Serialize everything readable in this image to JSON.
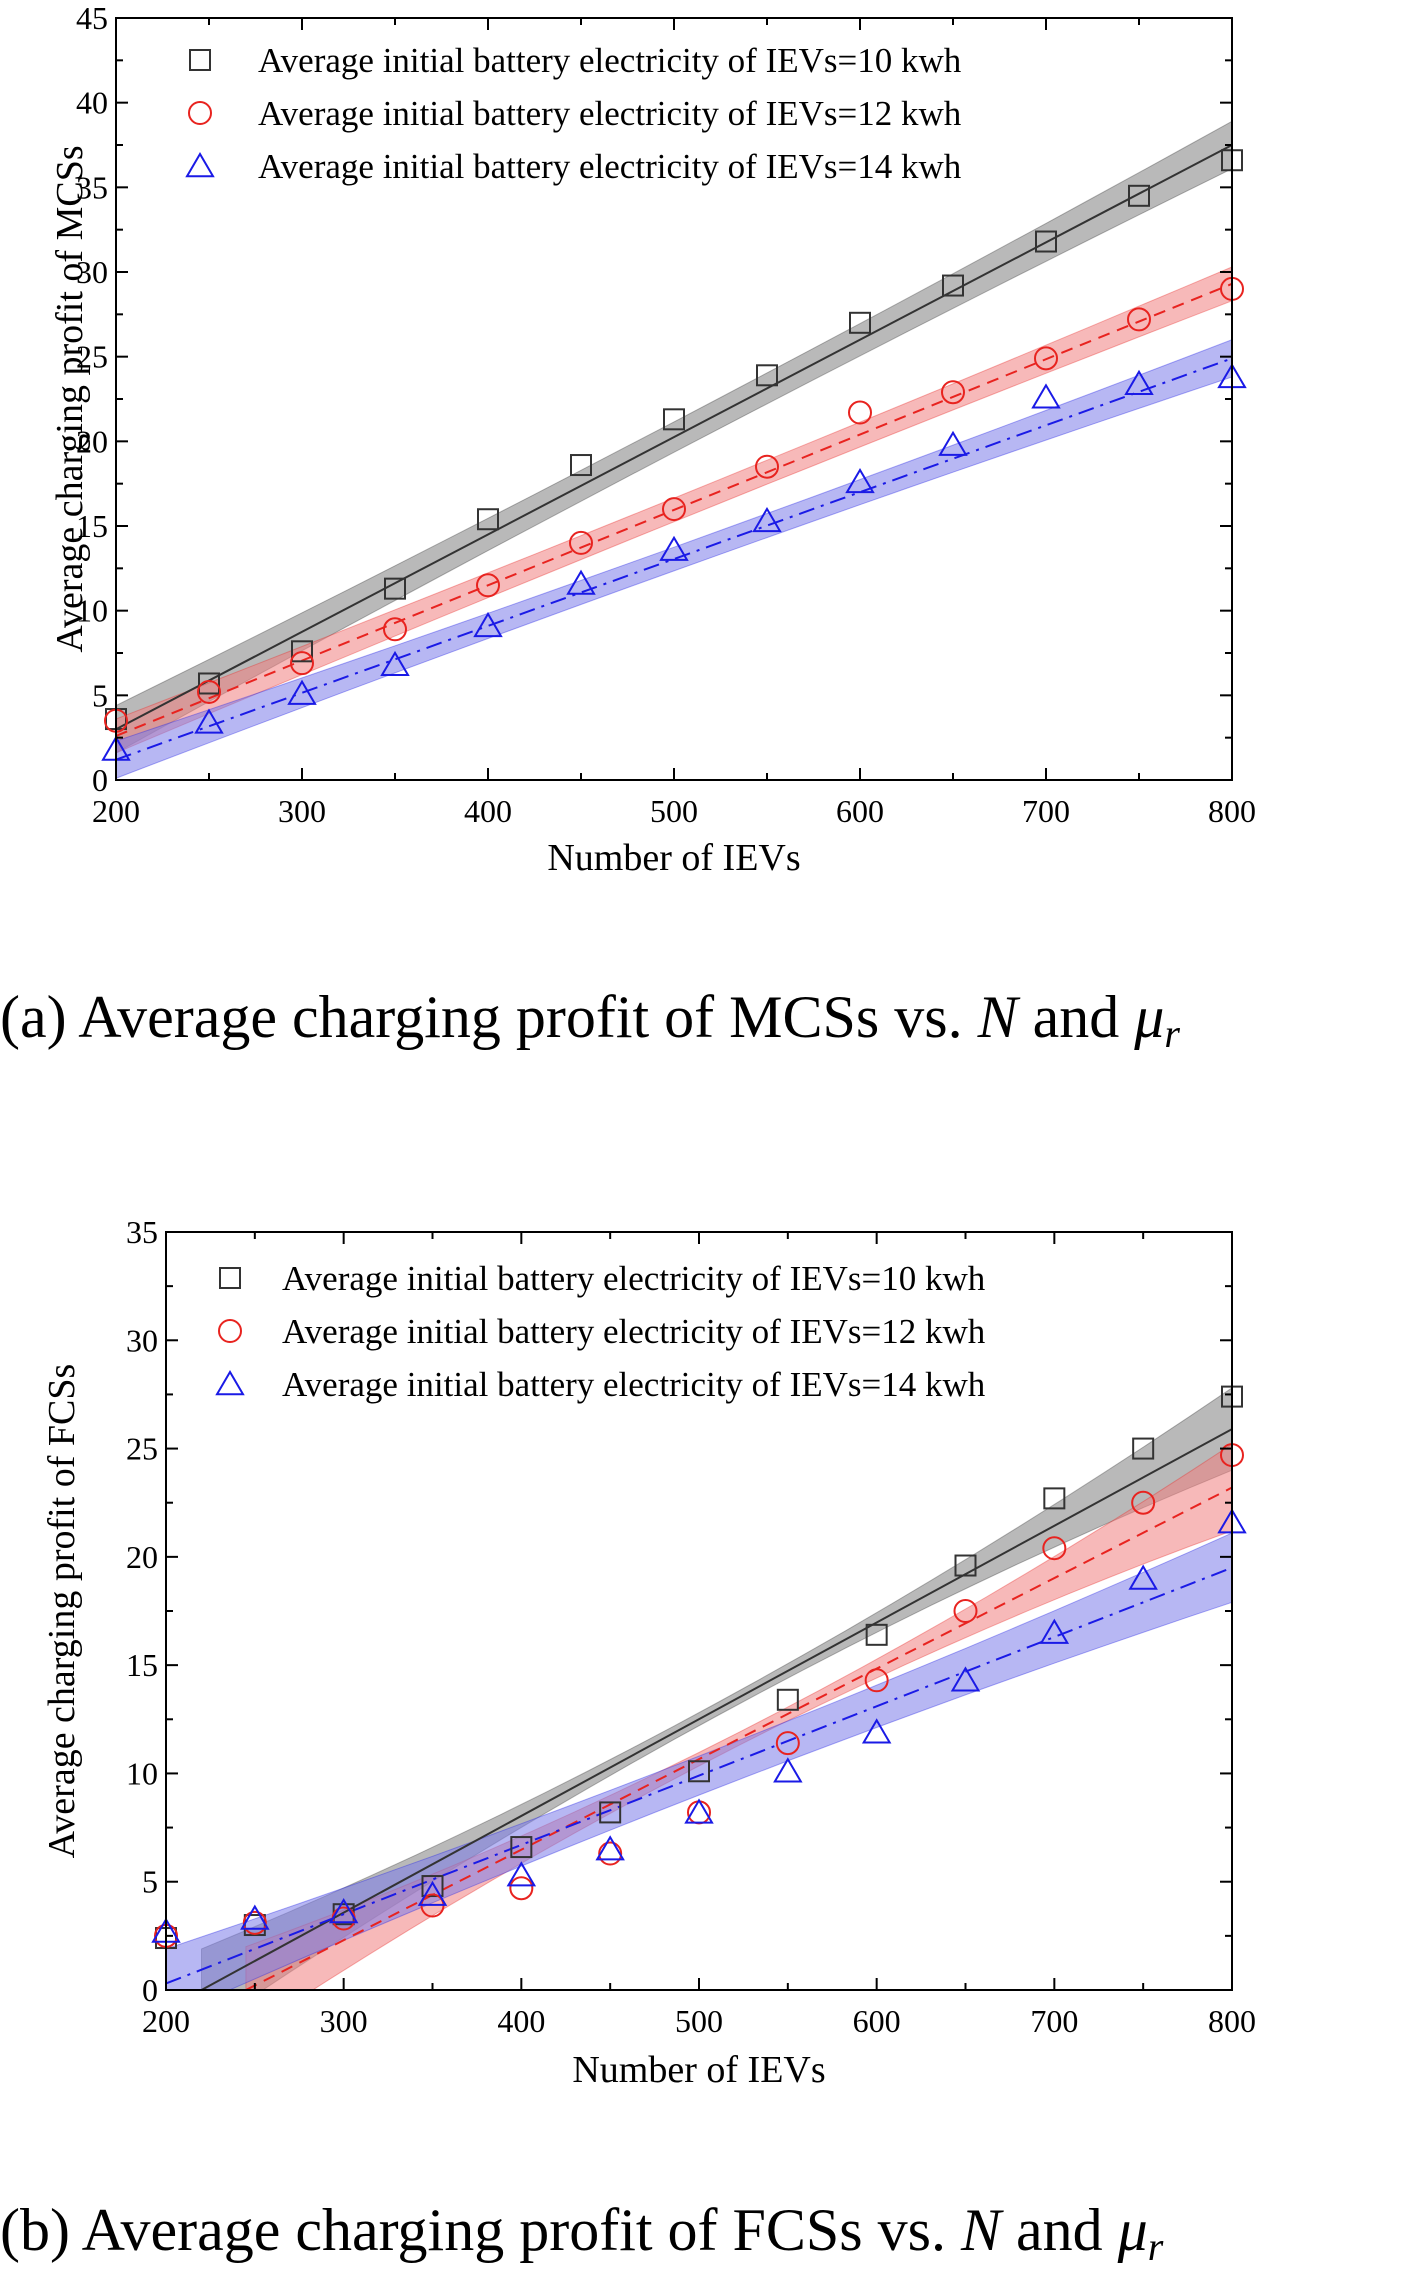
{
  "chart_data": [
    {
      "type": "scatter",
      "xlabel": "Number of IEVs",
      "ylabel": "Average charging profit of MCSs",
      "xlim": [
        200,
        800
      ],
      "ylim": [
        0,
        45
      ],
      "xticks": [
        200,
        300,
        400,
        500,
        600,
        700,
        800
      ],
      "yticks": [
        0,
        5,
        10,
        15,
        20,
        25,
        30,
        35,
        40,
        45
      ],
      "legend_position": "top-left",
      "caption": {
        "prefix": "(a)  Average charging profit of MCSs vs. ",
        "var_n": "N",
        "mid": " and ",
        "var_mu": "μ",
        "sub": "r"
      },
      "x": [
        200,
        250,
        300,
        350,
        400,
        450,
        500,
        550,
        600,
        650,
        700,
        750,
        800
      ],
      "series": [
        {
          "name": "Average initial battery electricity of IEVs=10 kwh",
          "marker": "square",
          "color": "#333333",
          "band_color": "#7f7f7f",
          "line_style": "solid",
          "values": [
            3.6,
            5.7,
            7.6,
            11.3,
            15.4,
            18.6,
            21.3,
            23.9,
            27.0,
            29.2,
            31.8,
            34.5,
            36.6
          ],
          "fit": {
            "x": [
              200,
              800
            ],
            "y": [
              3.0,
              37.5
            ],
            "band": [
              0.9,
              1.4
            ]
          }
        },
        {
          "name": "Average initial battery electricity of IEVs=12 kwh",
          "marker": "circle",
          "color": "#e8231f",
          "band_color": "#f08080",
          "line_style": "dashed",
          "values": [
            3.5,
            5.2,
            6.9,
            8.9,
            11.5,
            14.0,
            16.0,
            18.5,
            21.7,
            22.9,
            24.9,
            27.2,
            29.0
          ],
          "fit": {
            "x": [
              200,
              800
            ],
            "y": [
              2.6,
              29.3
            ],
            "band": [
              0.7,
              1.0
            ]
          }
        },
        {
          "name": "Average initial battery electricity of IEVs=14 kwh",
          "marker": "triangle",
          "color": "#1a1ae6",
          "band_color": "#7b7bea",
          "line_style": "dashdot",
          "values": [
            1.8,
            3.4,
            5.1,
            6.8,
            9.1,
            11.6,
            13.6,
            15.3,
            17.6,
            19.8,
            22.6,
            23.4,
            23.8
          ],
          "fit": {
            "x": [
              200,
              800
            ],
            "y": [
              1.2,
              24.9
            ],
            "band": [
              0.7,
              1.1
            ]
          }
        }
      ]
    },
    {
      "type": "scatter",
      "xlabel": "Number of IEVs",
      "ylabel": "Average charging profit of FCSs",
      "xlim": [
        200,
        800
      ],
      "ylim": [
        0,
        35
      ],
      "xticks": [
        200,
        300,
        400,
        500,
        600,
        700,
        800
      ],
      "yticks": [
        0,
        5,
        10,
        15,
        20,
        25,
        30,
        35
      ],
      "legend_position": "top-left",
      "caption": {
        "prefix": "(b)  Average charging profit of FCSs vs. ",
        "var_n": "N",
        "mid": " and ",
        "var_mu": "μ",
        "sub": "r"
      },
      "x": [
        200,
        250,
        300,
        350,
        400,
        450,
        500,
        550,
        600,
        650,
        700,
        750,
        800
      ],
      "series": [
        {
          "name": "Average initial battery electricity of IEVs=10 kwh",
          "marker": "square",
          "color": "#333333",
          "band_color": "#7f7f7f",
          "line_style": "solid",
          "values": [
            2.4,
            3.0,
            3.5,
            4.8,
            6.6,
            8.2,
            10.1,
            13.4,
            16.4,
            19.6,
            22.7,
            25.0,
            27.4
          ],
          "fit": {
            "x": [
              220,
              800
            ],
            "y": [
              0.0,
              25.9
            ],
            "band": [
              0.3,
              1.9
            ]
          }
        },
        {
          "name": "Average initial battery electricity of IEVs=12 kwh",
          "marker": "circle",
          "color": "#e8231f",
          "band_color": "#f08080",
          "line_style": "dashed",
          "values": [
            2.5,
            3.1,
            3.3,
            3.9,
            4.7,
            6.3,
            8.2,
            11.4,
            14.3,
            17.5,
            20.4,
            22.5,
            24.7
          ],
          "fit": {
            "x": [
              245,
              800
            ],
            "y": [
              0.0,
              23.2
            ],
            "band": [
              0.3,
              2.0
            ]
          }
        },
        {
          "name": "Average initial battery electricity of IEVs=14 kwh",
          "marker": "triangle",
          "color": "#1a1ae6",
          "band_color": "#7b7bea",
          "line_style": "dashdot",
          "values": [
            2.7,
            3.3,
            3.6,
            4.4,
            5.3,
            6.5,
            8.2,
            10.1,
            11.9,
            14.3,
            16.5,
            19.0,
            21.6
          ],
          "fit": {
            "x": [
              200,
              800
            ],
            "y": [
              0.3,
              19.5
            ],
            "band": [
              0.9,
              1.6
            ]
          }
        }
      ]
    }
  ]
}
